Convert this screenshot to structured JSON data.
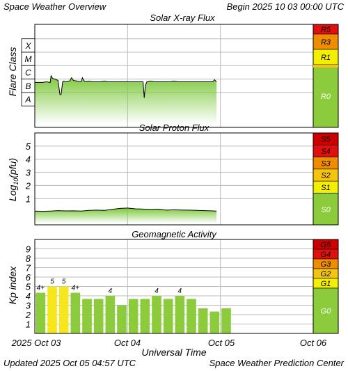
{
  "header": {
    "title": "Space Weather Overview",
    "begin": "Begin 2025 10 03 00:00 UTC"
  },
  "footer": {
    "updated": "Updated 2025 Oct 05 04:57 UTC",
    "credit": "Space Weather Prediction Center"
  },
  "colors": {
    "frame": "#000000",
    "grid": "#bbbbbb",
    "trace_fill": "#7dc83c",
    "kp_green": "#8ccc3c",
    "kp_yellow": "#f5e61e",
    "scale_red": "#cc0000",
    "scale_darkred": "#e01010",
    "scale_orange": "#f08c00",
    "scale_amber": "#f5c40f",
    "scale_yellow": "#f3ef00",
    "scale_green": "#8ccc3c"
  },
  "chart_data": [
    {
      "type": "area",
      "title": "Solar X-ray Flux",
      "ylabel": "Flare Class",
      "y_categories": [
        "X",
        "M",
        "C",
        "B",
        "A"
      ],
      "x_ticks": [
        "2025 Oct 03",
        "Oct 04",
        "Oct 05",
        "Oct 06"
      ],
      "xlim_hours": [
        0,
        72
      ],
      "series": [
        {
          "x_hours": [
            0,
            1,
            2,
            3,
            4,
            4.2,
            4.6,
            5.2,
            6,
            6.5,
            6.8,
            7.2,
            7.5,
            8,
            9,
            9.5,
            10,
            11,
            12,
            12.3,
            12.7,
            13,
            14,
            15,
            16,
            17,
            18,
            19,
            20,
            21,
            22,
            23,
            24,
            25,
            26,
            27,
            28,
            28.3,
            28.6,
            29,
            30,
            31,
            32,
            33,
            34,
            35,
            36,
            37,
            38,
            39,
            40,
            41,
            42,
            43,
            44,
            45,
            46,
            46.5,
            47
          ],
          "level": [
            2.25,
            2.25,
            2.25,
            2.3,
            2.25,
            2.75,
            2.55,
            2.5,
            2.4,
            1.35,
            1.35,
            2.3,
            2.35,
            2.3,
            2.35,
            2.6,
            2.4,
            2.35,
            2.3,
            2.6,
            2.4,
            2.3,
            2.35,
            2.3,
            2.3,
            2.3,
            2.35,
            2.3,
            2.3,
            2.3,
            2.3,
            2.3,
            2.3,
            2.3,
            2.3,
            2.3,
            2.3,
            1.1,
            2.05,
            2.3,
            2.35,
            2.3,
            2.3,
            2.3,
            2.3,
            2.3,
            2.35,
            2.3,
            2.3,
            2.3,
            2.3,
            2.3,
            2.3,
            2.3,
            2.3,
            2.3,
            2.3,
            2.45,
            2.3
          ]
        }
      ],
      "scale": [
        "R5",
        "R3",
        "R1",
        "R0"
      ]
    },
    {
      "type": "area",
      "title": "Solar Proton Flux",
      "ylabel": "Log10(pfu)",
      "ylabel_main": "Log",
      "ylabel_sub": "10",
      "ylabel_tail": "(pfu)",
      "ylim": [
        -1,
        6
      ],
      "y_ticks": [
        "1",
        "2",
        "3",
        "4",
        "5"
      ],
      "xlim_hours": [
        0,
        72
      ],
      "series": [
        {
          "x_hours": [
            0,
            2,
            4,
            6,
            8,
            10,
            12,
            14,
            16,
            18,
            20,
            22,
            24,
            26,
            28,
            30,
            32,
            34,
            36,
            38,
            40,
            42,
            44,
            46,
            47
          ],
          "values": [
            0.05,
            0.03,
            0.05,
            0.08,
            0.06,
            0.07,
            0.05,
            0.1,
            0.12,
            0.1,
            0.18,
            0.25,
            0.28,
            0.22,
            0.2,
            0.18,
            0.2,
            0.12,
            0.15,
            0.13,
            0.12,
            0.1,
            0.08,
            0.06,
            0.05
          ]
        }
      ],
      "scale": [
        "S5",
        "S4",
        "S3",
        "S2",
        "S1",
        "S0"
      ]
    },
    {
      "type": "bar",
      "title": "Geomagnetic Activity",
      "ylabel": "Kp index",
      "ylim": [
        0,
        10
      ],
      "y_ticks": [
        "1",
        "2",
        "3",
        "4",
        "5",
        "6",
        "7",
        "8",
        "9"
      ],
      "xlabel": "Universal Time",
      "x_ticks": [
        "2025 Oct 03",
        "Oct 04",
        "Oct 05",
        "Oct 06"
      ],
      "values": [
        4.33,
        5,
        5,
        4.33,
        3.67,
        3.67,
        4,
        3,
        3.67,
        3.67,
        4,
        3.67,
        4,
        3.67,
        2.67,
        2.33,
        2.67
      ],
      "bar_labels": [
        "4+",
        "5",
        "5",
        "4+",
        "",
        "",
        "4",
        "",
        "",
        "",
        "4",
        "",
        "4",
        "",
        "",
        "",
        ""
      ],
      "scale": [
        "G5",
        "G4",
        "G3",
        "G2",
        "G1",
        "G0"
      ]
    }
  ]
}
